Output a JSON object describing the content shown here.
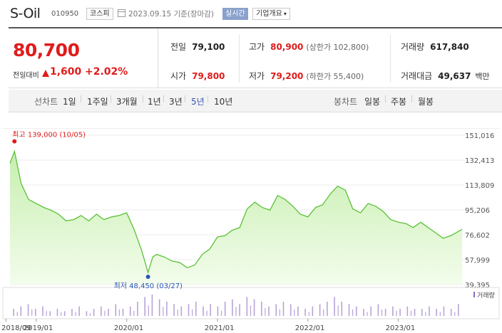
{
  "header": {
    "name": "S-Oil",
    "code": "010950",
    "market": "코스피",
    "date": "2023.09.15",
    "basis": "기준(장마감)",
    "realtime": "실시간",
    "corp_info": "기업개요"
  },
  "quote": {
    "price": "80,700",
    "change_label": "전일대비",
    "change": "1,600",
    "change_pct": "+2.02%",
    "prev_label": "전일",
    "prev": "79,100",
    "high_label": "고가",
    "high": "80,900",
    "upper_limit": "(상한가 102,800)",
    "volume_label": "거래량",
    "volume": "617,840",
    "open_label": "시가",
    "open": "79,800",
    "low_label": "저가",
    "low": "79,200",
    "lower_limit": "(하한가 55,400)",
    "amount_label": "거래대금",
    "amount": "49,637",
    "amount_unit": "백만"
  },
  "periods": {
    "line_label": "선차트",
    "line_items": [
      "1일",
      "1주일",
      "3개월",
      "1년",
      "3년",
      "5년",
      "10년"
    ],
    "selected": "5년",
    "candle_label": "봉차트",
    "candle_items": [
      "일봉",
      "주봉",
      "월봉"
    ]
  },
  "colors": {
    "up": "#e01b1b",
    "accent": "#3a58b0",
    "line": "#5cc13a",
    "fill": "#d7f5c4",
    "volume": "#b8a3d8"
  },
  "chart_data": {
    "type": "area",
    "y_ticks": [
      "151,016",
      "132,413",
      "113,809",
      "95,206",
      "76,602",
      "57,999",
      "39,395"
    ],
    "ylim": [
      39395,
      151016
    ],
    "x_ticks": [
      "2018/09",
      "2019/01",
      "2020/01",
      "2021/01",
      "2022/01",
      "2023/01"
    ],
    "x_ticks_date": [
      "2018-09",
      "2019-01",
      "2020-01",
      "2021-01",
      "2022-01",
      "2023-01"
    ],
    "xlim": [
      "2018-09-17",
      "2023-09-15"
    ],
    "max_label": "최고 139,000 (10/05)",
    "min_label": "최저 48,450 (03/27)",
    "max_point": {
      "x": "2018-10-05",
      "y": 139000
    },
    "min_point": {
      "x": "2020-03-27",
      "y": 48450
    },
    "volume_legend": "거래량",
    "series": [
      {
        "x": [
          "2018-09-17",
          "2018-10-05",
          "2018-11-01",
          "2018-12-01",
          "2019-01-01",
          "2019-02-01",
          "2019-03-01",
          "2019-04-01",
          "2019-05-01",
          "2019-06-01",
          "2019-07-01",
          "2019-08-01",
          "2019-09-01",
          "2019-10-01",
          "2019-11-01",
          "2019-12-01",
          "2020-01-01",
          "2020-02-01",
          "2020-03-01",
          "2020-03-27",
          "2020-04-15",
          "2020-05-01",
          "2020-06-01",
          "2020-07-01",
          "2020-08-01",
          "2020-09-01",
          "2020-10-01",
          "2020-11-01",
          "2020-12-01",
          "2021-01-01",
          "2021-02-01",
          "2021-03-01",
          "2021-04-01",
          "2021-05-01",
          "2021-06-01",
          "2021-07-01",
          "2021-08-01",
          "2021-09-01",
          "2021-10-01",
          "2021-11-01",
          "2021-12-01",
          "2022-01-01",
          "2022-02-01",
          "2022-03-01",
          "2022-04-01",
          "2022-05-01",
          "2022-06-01",
          "2022-07-01",
          "2022-08-01",
          "2022-09-01",
          "2022-10-01",
          "2022-11-01",
          "2022-12-01",
          "2023-01-01",
          "2023-02-01",
          "2023-03-01",
          "2023-04-01",
          "2023-05-01",
          "2023-06-01",
          "2023-07-01",
          "2023-08-01",
          "2023-09-15"
        ],
        "y": [
          130000,
          139000,
          115000,
          103000,
          100000,
          97000,
          95000,
          92000,
          87000,
          88000,
          91000,
          87000,
          92000,
          88000,
          90000,
          91000,
          93000,
          80000,
          65000,
          48450,
          60000,
          62000,
          60000,
          57000,
          56000,
          52000,
          54000,
          62000,
          66000,
          75000,
          76000,
          80000,
          82000,
          96000,
          101000,
          97000,
          95000,
          106000,
          103000,
          98000,
          92000,
          90000,
          97000,
          99000,
          107000,
          113000,
          110000,
          96000,
          93000,
          100000,
          98000,
          94000,
          88000,
          86000,
          85000,
          82000,
          86000,
          82000,
          78000,
          74000,
          76000,
          80700
        ]
      }
    ],
    "volume": [
      3,
      4,
      5,
      3,
      4,
      2,
      3,
      2,
      3,
      4,
      2,
      3,
      4,
      3,
      5,
      3,
      4,
      6,
      8,
      9,
      7,
      6,
      5,
      4,
      5,
      6,
      4,
      5,
      4,
      6,
      7,
      5,
      8,
      7,
      6,
      4,
      5,
      6,
      5,
      4,
      3,
      4,
      5,
      6,
      8,
      6,
      5,
      4,
      3,
      4,
      5,
      3,
      4,
      3,
      4,
      3,
      3,
      4,
      3,
      4,
      3,
      5
    ]
  }
}
